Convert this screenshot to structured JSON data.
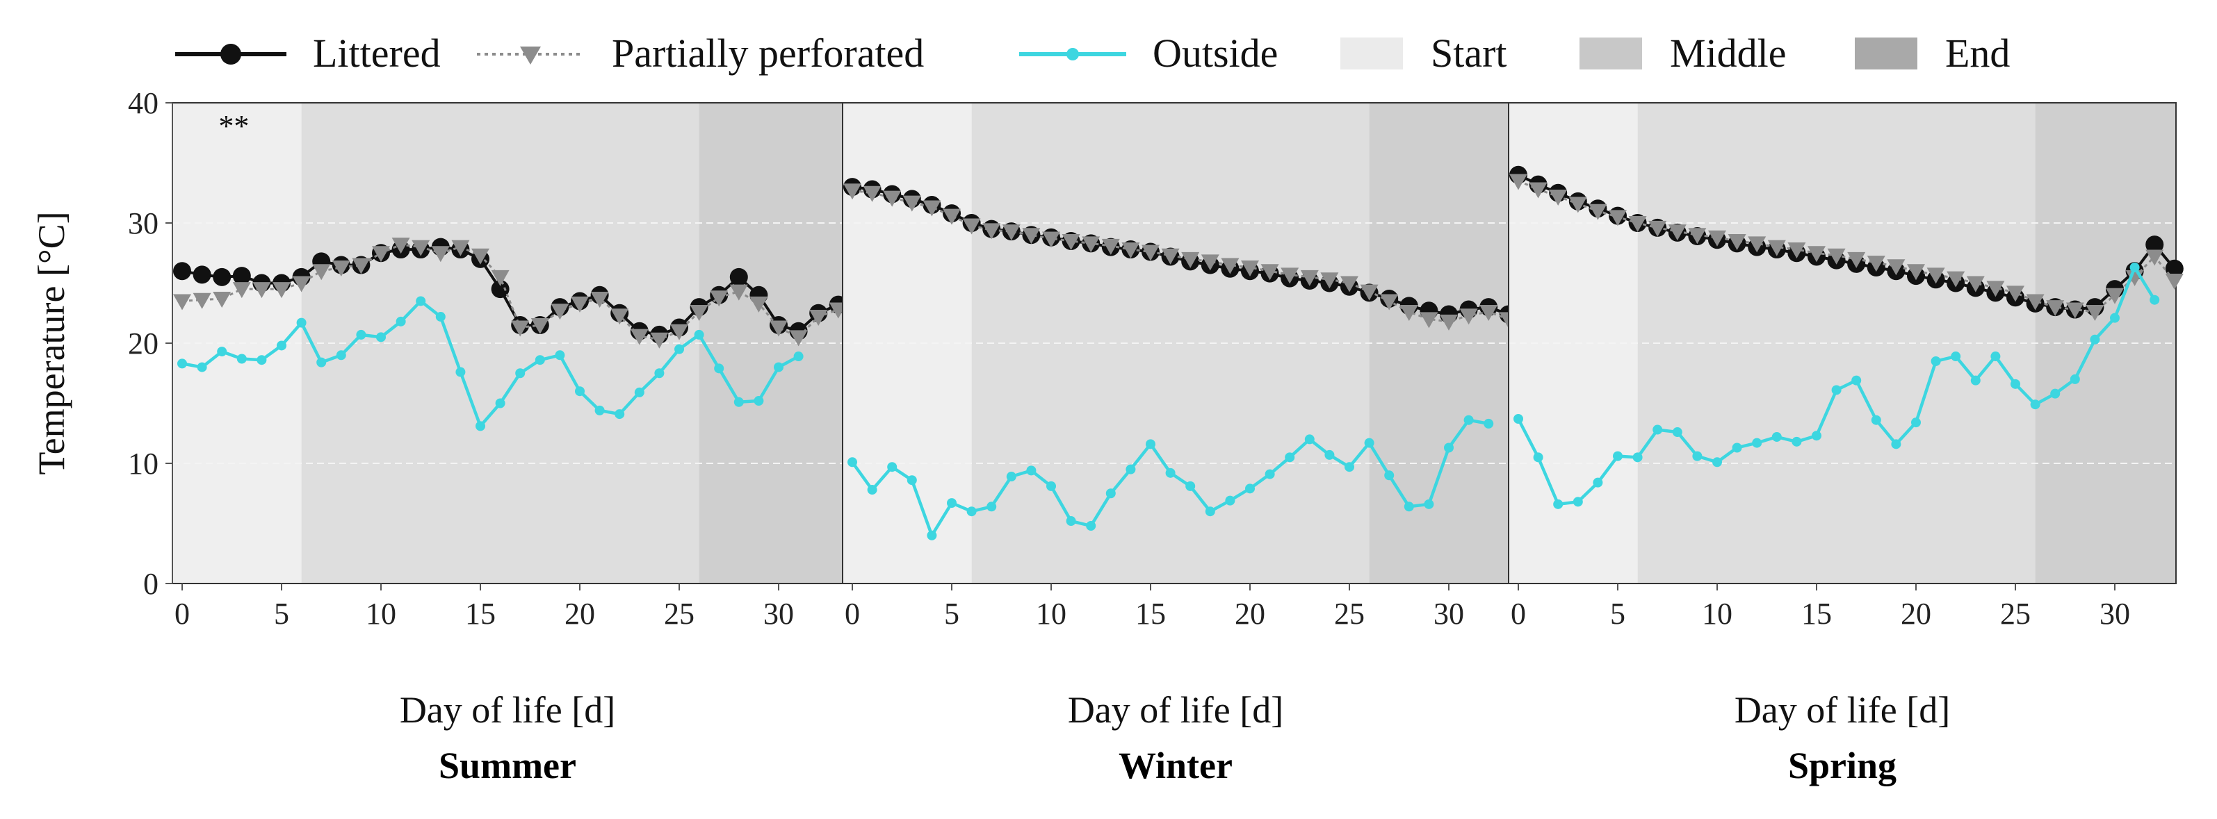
{
  "chart_data": {
    "type": "line",
    "ylabel": "Temperature [°C]",
    "ylim": [
      0,
      40
    ],
    "yticks": [
      0,
      10,
      20,
      30,
      40
    ],
    "xlim": [
      0,
      32
    ],
    "xticks": [
      0,
      5,
      10,
      15,
      20,
      25,
      30
    ],
    "legend": {
      "position": "top",
      "entries": [
        {
          "key": "littered",
          "label": "Littered"
        },
        {
          "key": "partial",
          "label": "Partially perforated"
        },
        {
          "key": "outside",
          "label": "Outside"
        },
        {
          "key": "start",
          "label": "Start"
        },
        {
          "key": "middle",
          "label": "Middle"
        },
        {
          "key": "end",
          "label": "End"
        }
      ]
    },
    "colors": {
      "littered": "#111111",
      "partial": "#8c8c8c",
      "outside": "#3dd6e0",
      "start": "#efefef",
      "middle": "#dedede",
      "end": "#cfcfcf",
      "grid": "#f4f4f4"
    },
    "phases": {
      "start": [
        0,
        6
      ],
      "middle": [
        6,
        26
      ],
      "end": [
        26,
        33
      ]
    },
    "panels": [
      {
        "title": "Summer",
        "xlabel": "Day of life [d]",
        "annotation": "**",
        "series": {
          "littered": [
            26,
            25.7,
            25.5,
            25.6,
            25,
            25,
            25.5,
            26.8,
            26.5,
            26.5,
            27.5,
            27.8,
            27.8,
            28,
            27.8,
            27,
            24.5,
            21.5,
            21.5,
            23,
            23.5,
            24,
            22.5,
            21,
            20.7,
            21.3,
            23,
            24,
            25.5,
            24,
            21.5,
            21,
            22.5,
            23.2
          ],
          "partial": [
            23.5,
            23.6,
            23.7,
            24.5,
            24.5,
            24.5,
            25,
            26,
            26.3,
            26.5,
            27.5,
            28.2,
            28,
            27.5,
            28,
            27.3,
            25.5,
            21.3,
            21.5,
            22.7,
            23.3,
            23.7,
            22.3,
            20.6,
            20.3,
            21,
            22.6,
            23.8,
            24.3,
            23.3,
            21.3,
            20.5,
            22.2,
            22.8
          ],
          "outside": [
            18.3,
            18,
            19.3,
            18.7,
            18.6,
            19.8,
            21.7,
            18.4,
            19,
            20.7,
            20.5,
            21.8,
            23.5,
            22.2,
            17.6,
            13.1,
            15,
            17.5,
            18.6,
            19,
            16,
            14.4,
            14.1,
            15.9,
            17.5,
            19.5,
            20.7,
            17.9,
            15.1,
            15.2,
            18,
            18.9
          ]
        }
      },
      {
        "title": "Winter",
        "xlabel": "Day of life [d]",
        "series": {
          "littered": [
            33,
            32.8,
            32.4,
            32,
            31.5,
            30.8,
            30,
            29.5,
            29.3,
            29,
            28.8,
            28.5,
            28.3,
            28,
            27.8,
            27.6,
            27.2,
            26.8,
            26.5,
            26.2,
            26,
            25.8,
            25.4,
            25.2,
            25,
            24.7,
            24.2,
            23.7,
            23.1,
            22.7,
            22.4,
            22.8,
            23,
            22.4
          ],
          "partial": [
            32.7,
            32.5,
            32.1,
            31.7,
            31.3,
            30.6,
            29.8,
            29.4,
            29.3,
            29,
            28.7,
            28.5,
            28.3,
            28.1,
            27.8,
            27.6,
            27.3,
            27,
            26.8,
            26.5,
            26.3,
            26,
            25.7,
            25.5,
            25.3,
            25,
            24.3,
            23.5,
            22.6,
            22,
            21.8,
            22.3,
            22.6,
            22
          ],
          "outside": [
            10.1,
            7.8,
            9.7,
            8.6,
            4,
            6.7,
            6,
            6.4,
            8.9,
            9.4,
            8.1,
            5.2,
            4.8,
            7.5,
            9.5,
            11.6,
            9.2,
            8.1,
            6,
            6.9,
            7.9,
            9.1,
            10.5,
            12,
            10.7,
            9.7,
            11.7,
            9,
            6.4,
            6.6,
            11.3,
            13.6,
            13.3
          ]
        }
      },
      {
        "title": "Spring",
        "xlabel": "Day of life [d]",
        "series": {
          "littered": [
            34,
            33.2,
            32.5,
            31.8,
            31.2,
            30.6,
            30,
            29.6,
            29.2,
            28.9,
            28.6,
            28.3,
            28,
            27.8,
            27.5,
            27.2,
            26.9,
            26.6,
            26.3,
            26,
            25.6,
            25.3,
            25,
            24.6,
            24.2,
            23.8,
            23.3,
            23,
            22.8,
            23,
            24.5,
            26,
            28.2,
            26.2
          ],
          "partial": [
            33.5,
            32.8,
            32.2,
            31.6,
            31,
            30.5,
            30,
            29.6,
            29.3,
            29,
            28.8,
            28.5,
            28.3,
            28,
            27.8,
            27.5,
            27.3,
            27,
            26.7,
            26.4,
            26,
            25.7,
            25.4,
            25,
            24.6,
            24.2,
            23.5,
            23,
            22.8,
            22.6,
            24,
            25.5,
            27.2,
            25.2
          ],
          "outside": [
            13.7,
            10.5,
            6.6,
            6.8,
            8.4,
            10.6,
            10.5,
            12.8,
            12.6,
            10.6,
            10.1,
            11.3,
            11.7,
            12.2,
            11.8,
            12.3,
            16.1,
            16.9,
            13.6,
            11.6,
            13.4,
            18.5,
            18.9,
            16.9,
            18.9,
            16.6,
            14.9,
            15.8,
            17,
            20.3,
            22.1,
            26.3,
            23.6
          ]
        }
      }
    ]
  }
}
